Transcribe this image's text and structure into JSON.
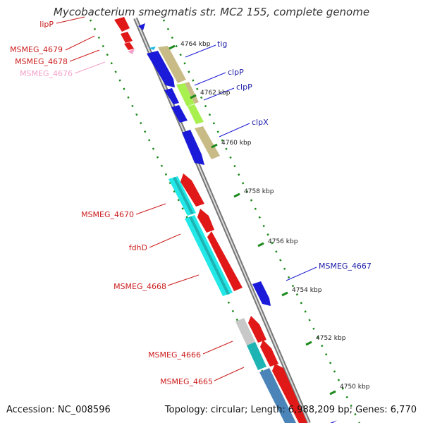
{
  "title": "Mycobacterium smegmatis str. MC2 155, complete genome",
  "footer": {
    "accession": "Accession: NC_008596",
    "summary": "Topology: circular; Length: 6,988,209 bp; Genes: 6,770"
  },
  "ticks": [
    "4764 kbp",
    "4762 kbp",
    "4760 kbp",
    "4758 kbp",
    "4756 kbp",
    "4754 kbp",
    "4752 kbp",
    "4750 kbp"
  ],
  "labels_right": [
    "tig",
    "clpP",
    "clpP",
    "clpX",
    "MSMEG_4667"
  ],
  "labels_left": [
    "lipP",
    "MSMEG_4679",
    "MSMEG_4678",
    "MSMEG_4676",
    "MSMEG_4670",
    "fdhD",
    "MSMEG_4668",
    "MSMEG_4666",
    "MSMEG_4665"
  ],
  "colors": {
    "backbone": "#8a8a8a",
    "forward_genes": "#1a1ad8",
    "reverse_genes": "#e01818",
    "cds_cyan": "#22e8e8",
    "cds_khaki": "#c8bb86",
    "cds_lime": "#a8f050",
    "cds_teal": "#1fb4b4",
    "cds_steel": "#4a84b8",
    "cds_grey": "#c8c8c8",
    "pseudogene_pink": "#f4a0c8",
    "gc_dots": "#1c8a1c",
    "label_blue": "#1a1aa8",
    "label_red": "#cc1c1c"
  }
}
